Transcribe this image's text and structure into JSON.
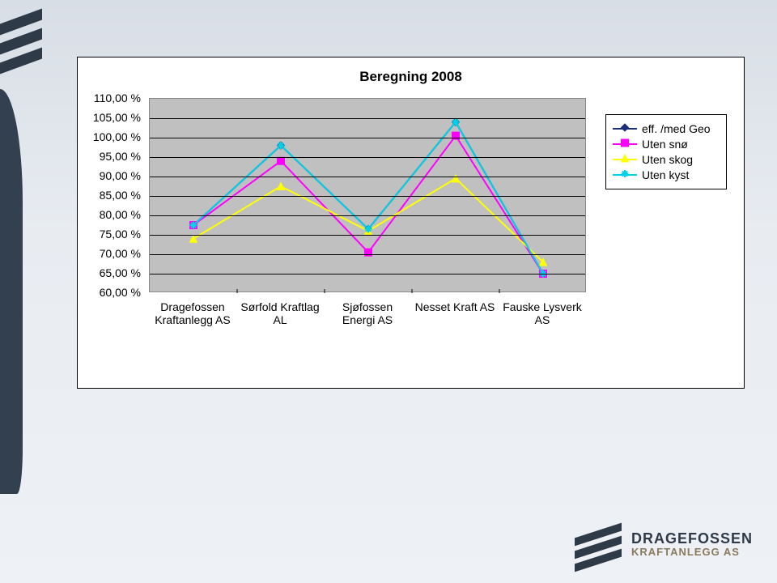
{
  "slide": {
    "background_gradient": [
      "#d8dee6",
      "#eef1f5"
    ]
  },
  "brand": {
    "line1": "DRAGEFOSSEN",
    "line2": "KRAFTANLEGG AS",
    "color1": "#2f3a48",
    "color2": "#8a7a5c"
  },
  "chart": {
    "type": "line",
    "title": "Beregning 2008",
    "title_fontsize": 17,
    "panel_background": "#ffffff",
    "panel_border": "#000000",
    "plot_background": "#c0c0c0",
    "grid_color": "#000000",
    "ylim": [
      60,
      110
    ],
    "ytick_step": 5,
    "ytick_labels": [
      "110,00 %",
      "105,00 %",
      "100,00 %",
      "95,00 %",
      "90,00 %",
      "85,00 %",
      "80,00 %",
      "75,00 %",
      "70,00 %",
      "65,00 %",
      "60,00 %"
    ],
    "categories": [
      "Dragefossen Kraftanlegg AS",
      "Sørfold Kraftlag AL",
      "Sjøfossen Energi AS",
      "Nesset Kraft AS",
      "Fauske Lysverk AS"
    ],
    "series": [
      {
        "name": "eff. /med Geo",
        "color": "#1b2f7a",
        "marker": "diamond",
        "values": [
          77.5,
          98.0,
          76.5,
          104.0,
          65.0
        ]
      },
      {
        "name": "Uten snø",
        "color": "#ff00ff",
        "marker": "square",
        "values": [
          77.5,
          94.0,
          70.5,
          100.5,
          65.0
        ]
      },
      {
        "name": "Uten skog",
        "color": "#ffff00",
        "marker": "triangle",
        "values": [
          74.0,
          87.5,
          76.0,
          89.5,
          68.0
        ]
      },
      {
        "name": "Uten kyst",
        "color": "#00d0e8",
        "marker": "star",
        "values": [
          77.5,
          98.0,
          76.5,
          104.0,
          65.0
        ]
      }
    ],
    "legend": {
      "border": "#000000",
      "background": "#ffffff",
      "fontsize": 14
    },
    "line_width": 2,
    "marker_size": 9,
    "axis_fontsize": 14
  }
}
